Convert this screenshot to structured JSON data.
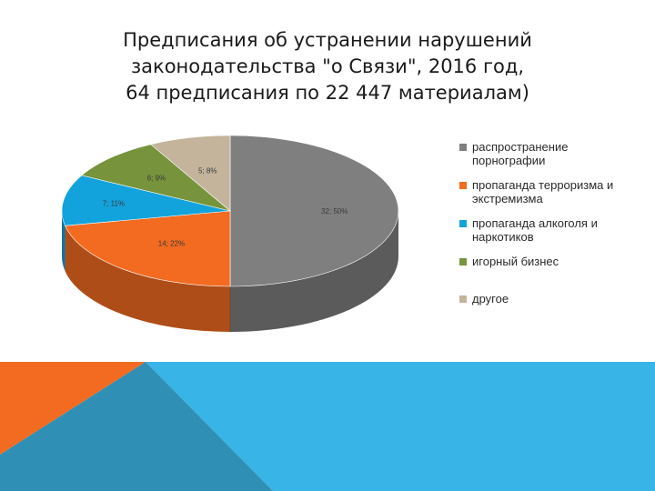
{
  "title": {
    "line1": "Предписания об устранении нарушений",
    "line2": "законодательства \"о Связи\", 2016 год,",
    "line3": "64 предписания по 22 447 материалам)"
  },
  "chart_data": {
    "type": "pie",
    "title": "Предписания об устранении нарушений законодательства \"о Связи\", 2016 год, 64 предписания по 22 447 материалам)",
    "legend_position": "right",
    "slices": [
      {
        "label": "распространение порнографии",
        "value": 32,
        "percent": 50,
        "data_label": "32; 50%",
        "color": "#7f7f7f"
      },
      {
        "label": "пропаганда терроризма и экстремизма",
        "value": 14,
        "percent": 22,
        "data_label": "14; 22%",
        "color": "#f26b21"
      },
      {
        "label": "пропаганда алкоголя и наркотиков",
        "value": 7,
        "percent": 11,
        "data_label": "7; 11%",
        "color": "#13a3dc"
      },
      {
        "label": "игорный бизнес",
        "value": 6,
        "percent": 9,
        "data_label": "6; 9%",
        "color": "#77933c"
      },
      {
        "label": "другое",
        "value": 5,
        "percent": 8,
        "data_label": "5; 8%",
        "color": "#c4b49c"
      }
    ]
  },
  "legend": {
    "items": [
      {
        "line1": "распространение",
        "line2": "порнографии",
        "color": "#7f7f7f"
      },
      {
        "line1": "пропаганда терроризма и",
        "line2": "экстремизма",
        "color": "#f26b21"
      },
      {
        "line1": "пропаганда алкоголя и",
        "line2": "наркотиков",
        "color": "#13a3dc"
      },
      {
        "line1": "игорный бизнес",
        "line2": "",
        "color": "#77933c"
      },
      {
        "line1": "другое",
        "line2": "",
        "color": "#c4b49c"
      }
    ]
  },
  "decor_colors": {
    "orange": "#f26b21",
    "blue": "#38b4e6",
    "blue_dark": "#2a90b8"
  }
}
